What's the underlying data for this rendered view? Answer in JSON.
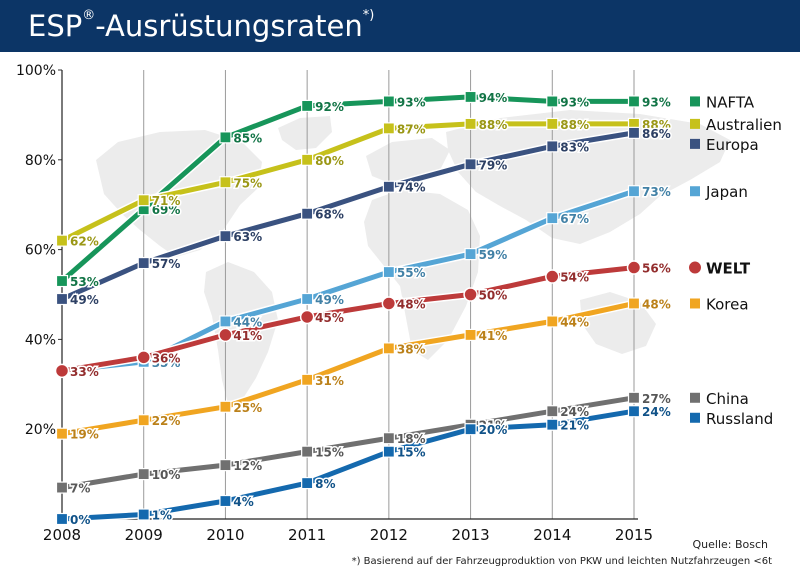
{
  "header": {
    "title_main": "ESP",
    "title_reg": "®",
    "title_rest": "-Ausrüstungsraten",
    "title_sup": "*)"
  },
  "footer": {
    "source": "Quelle: Bosch",
    "footnote": "*) Basierend auf der Fahrzeugproduktion von PKW und leichten Nutzfahrzeugen <6t"
  },
  "chart_data": {
    "type": "line",
    "title": "ESP®-Ausrüstungsraten*)",
    "x": [
      2008,
      2009,
      2010,
      2011,
      2012,
      2013,
      2014,
      2015
    ],
    "ylim": [
      0,
      100
    ],
    "yticks": [
      20,
      40,
      60,
      80,
      100
    ],
    "ytick_labels": [
      "20%",
      "40%",
      "60%",
      "80%",
      "100%"
    ],
    "grid": "vertical",
    "background": "world-map",
    "legend_position": "right",
    "series": [
      {
        "name": "NAFTA",
        "color": "#17955a",
        "marker": "square",
        "bold": false,
        "values": [
          53,
          69,
          85,
          92,
          93,
          94,
          93,
          93
        ]
      },
      {
        "name": "Australien",
        "color": "#c6c11b",
        "marker": "square",
        "bold": false,
        "values": [
          62,
          71,
          75,
          80,
          87,
          88,
          88,
          88
        ]
      },
      {
        "name": "Europa",
        "color": "#3a5280",
        "marker": "square",
        "bold": false,
        "values": [
          49,
          57,
          63,
          68,
          74,
          79,
          83,
          86
        ]
      },
      {
        "name": "Japan",
        "color": "#55a5d5",
        "marker": "square",
        "bold": false,
        "values": [
          33,
          35,
          44,
          49,
          55,
          59,
          67,
          73
        ]
      },
      {
        "name": "WELT",
        "color": "#bd3a3a",
        "marker": "circle",
        "bold": true,
        "values": [
          33,
          36,
          41,
          45,
          48,
          50,
          54,
          56
        ]
      },
      {
        "name": "Korea",
        "color": "#f0a521",
        "marker": "square",
        "bold": false,
        "values": [
          19,
          22,
          25,
          31,
          38,
          41,
          44,
          48
        ]
      },
      {
        "name": "China",
        "color": "#707070",
        "marker": "square",
        "bold": false,
        "values": [
          7,
          10,
          12,
          15,
          18,
          21,
          24,
          27
        ]
      },
      {
        "name": "Russland",
        "color": "#1469ae",
        "marker": "square",
        "bold": false,
        "values": [
          0,
          1,
          4,
          8,
          15,
          20,
          21,
          24
        ]
      }
    ]
  }
}
